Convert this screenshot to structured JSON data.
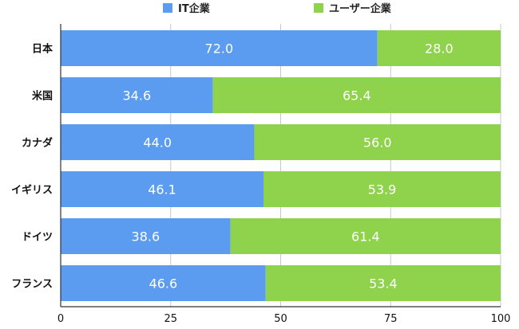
{
  "chart_data": {
    "type": "bar",
    "orientation": "horizontal",
    "stacked": true,
    "categories": [
      "日本",
      "米国",
      "カナダ",
      "イギリス",
      "ドイツ",
      "フランス"
    ],
    "series": [
      {
        "name": "IT企業",
        "color": "#5b9cf0",
        "values": [
          72.0,
          34.6,
          44.0,
          46.1,
          38.6,
          46.6
        ]
      },
      {
        "name": "ユーザー企業",
        "color": "#8fd24c",
        "values": [
          28.0,
          65.4,
          56.0,
          53.9,
          61.4,
          53.4
        ]
      }
    ],
    "xlim": [
      0,
      100
    ],
    "xticks": [
      0,
      25,
      50,
      75,
      100
    ],
    "grid": true,
    "legend_position": "top"
  }
}
